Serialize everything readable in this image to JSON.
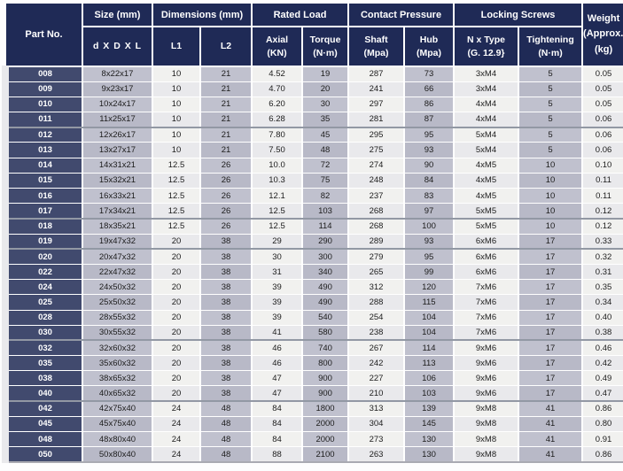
{
  "colors": {
    "header_bg": "#1f2a56",
    "part_col_bg": "#414a6e",
    "col_shaded": "#c0c1ce",
    "col_shaded_alt": "#b8b9c7",
    "col_light": "#f1f1ef",
    "col_light_alt": "#e9e9ec",
    "grid_line": "#ffffff",
    "group_separator": "#9298a4",
    "header_text": "#ffffff",
    "body_text": "#1c1c1c"
  },
  "table": {
    "header": {
      "part_no": "Part No.",
      "groups": {
        "size": "Size (mm)",
        "dimensions": "Dimensions (mm)",
        "rated_load": "Rated Load",
        "contact_pressure": "Contact Pressure",
        "locking_screws": "Locking Screws"
      },
      "sub": {
        "size": "d X D X L",
        "l1": "L1",
        "l2": "L2",
        "axial": {
          "t": "Axial",
          "u": "(KN)"
        },
        "torque": {
          "t": "Torque",
          "u": "(N·m)"
        },
        "shaft": {
          "t": "Shaft",
          "u": "(Mpa)"
        },
        "hub": {
          "t": "Hub",
          "u": "(Mpa)"
        },
        "n_type": {
          "t": "N x Type",
          "u": "(G. 12.9}"
        },
        "tightening": {
          "t": "Tightening",
          "u": "(N·m)"
        }
      },
      "weight": {
        "t": "Weight",
        "m": "(Approx.)",
        "u": "(kg)"
      }
    },
    "rows": [
      [
        "008",
        "8x22x17",
        "10",
        "21",
        "4.52",
        "19",
        "287",
        "73",
        "3xM4",
        "5",
        "0.05"
      ],
      [
        "009",
        "9x23x17",
        "10",
        "21",
        "4.70",
        "20",
        "241",
        "66",
        "3xM4",
        "5",
        "0.05"
      ],
      [
        "010",
        "10x24x17",
        "10",
        "21",
        "6.20",
        "30",
        "297",
        "86",
        "4xM4",
        "5",
        "0.05"
      ],
      [
        "011",
        "11x25x17",
        "10",
        "21",
        "6.28",
        "35",
        "281",
        "87",
        "4xM4",
        "5",
        "0.06"
      ],
      [
        "012",
        "12x26x17",
        "10",
        "21",
        "7.80",
        "45",
        "295",
        "95",
        "5xM4",
        "5",
        "0.06"
      ],
      [
        "013",
        "13x27x17",
        "10",
        "21",
        "7.50",
        "48",
        "275",
        "93",
        "5xM4",
        "5",
        "0.06"
      ],
      [
        "014",
        "14x31x21",
        "12.5",
        "26",
        "10.0",
        "72",
        "274",
        "90",
        "4xM5",
        "10",
        "0.10"
      ],
      [
        "015",
        "15x32x21",
        "12.5",
        "26",
        "10.3",
        "75",
        "248",
        "84",
        "4xM5",
        "10",
        "0.11"
      ],
      [
        "016",
        "16x33x21",
        "12.5",
        "26",
        "12.1",
        "82",
        "237",
        "83",
        "4xM5",
        "10",
        "0.11"
      ],
      [
        "017",
        "17x34x21",
        "12.5",
        "26",
        "12.5",
        "103",
        "268",
        "97",
        "5xM5",
        "10",
        "0.12"
      ],
      [
        "018",
        "18x35x21",
        "12.5",
        "26",
        "12.5",
        "114",
        "268",
        "100",
        "5xM5",
        "10",
        "0.12"
      ],
      [
        "019",
        "19x47x32",
        "20",
        "38",
        "29",
        "290",
        "289",
        "93",
        "6xM6",
        "17",
        "0.33"
      ],
      [
        "020",
        "20x47x32",
        "20",
        "38",
        "30",
        "300",
        "279",
        "95",
        "6xM6",
        "17",
        "0.32"
      ],
      [
        "022",
        "22x47x32",
        "20",
        "38",
        "31",
        "340",
        "265",
        "99",
        "6xM6",
        "17",
        "0.31"
      ],
      [
        "024",
        "24x50x32",
        "20",
        "38",
        "39",
        "490",
        "312",
        "120",
        "7xM6",
        "17",
        "0.35"
      ],
      [
        "025",
        "25x50x32",
        "20",
        "38",
        "39",
        "490",
        "288",
        "115",
        "7xM6",
        "17",
        "0.34"
      ],
      [
        "028",
        "28x55x32",
        "20",
        "38",
        "39",
        "540",
        "254",
        "104",
        "7xM6",
        "17",
        "0.40"
      ],
      [
        "030",
        "30x55x32",
        "20",
        "38",
        "41",
        "580",
        "238",
        "104",
        "7xM6",
        "17",
        "0.38"
      ],
      [
        "032",
        "32x60x32",
        "20",
        "38",
        "46",
        "740",
        "267",
        "114",
        "9xM6",
        "17",
        "0.46"
      ],
      [
        "035",
        "35x60x32",
        "20",
        "38",
        "46",
        "800",
        "242",
        "113",
        "9xM6",
        "17",
        "0.42"
      ],
      [
        "038",
        "38x65x32",
        "20",
        "38",
        "47",
        "900",
        "227",
        "106",
        "9xM6",
        "17",
        "0.49"
      ],
      [
        "040",
        "40x65x32",
        "20",
        "38",
        "47",
        "900",
        "210",
        "103",
        "9xM6",
        "17",
        "0.47"
      ],
      [
        "042",
        "42x75x40",
        "24",
        "48",
        "84",
        "1800",
        "313",
        "139",
        "9xM8",
        "41",
        "0.86"
      ],
      [
        "045",
        "45x75x40",
        "24",
        "48",
        "84",
        "2000",
        "304",
        "145",
        "9xM8",
        "41",
        "0.80"
      ],
      [
        "048",
        "48x80x40",
        "24",
        "48",
        "84",
        "2000",
        "273",
        "130",
        "9xM8",
        "41",
        "0.91"
      ],
      [
        "050",
        "50x80x40",
        "24",
        "48",
        "88",
        "2100",
        "263",
        "130",
        "9xM8",
        "41",
        "0.86"
      ]
    ],
    "separators_after": [
      "011",
      "017",
      "019",
      "030",
      "040"
    ]
  }
}
